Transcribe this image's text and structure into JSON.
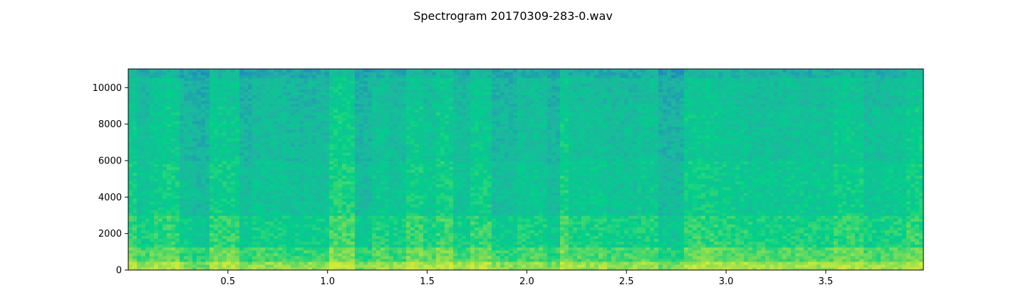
{
  "chart_data": {
    "type": "heatmap",
    "title": "Spectrogram 20170309-283-0.wav",
    "xlabel": "",
    "ylabel": "",
    "xlim": [
      0.0,
      3.99
    ],
    "ylim": [
      0,
      11025
    ],
    "x_ticks": [
      0.5,
      1.0,
      1.5,
      2.0,
      2.5,
      3.0,
      3.5
    ],
    "x_tick_labels": [
      "0.5",
      "1.0",
      "1.5",
      "2.0",
      "2.5",
      "3.0",
      "3.5"
    ],
    "y_ticks": [
      0,
      2000,
      4000,
      6000,
      8000,
      10000
    ],
    "y_tick_labels": [
      "0",
      "2000",
      "4000",
      "6000",
      "8000",
      "10000"
    ],
    "colormap": [
      "#2a4fa0",
      "#1d8fbd",
      "#1fb5a0",
      "#00d08a",
      "#6edb5a",
      "#c8e83a",
      "#f0f020"
    ],
    "grid": false,
    "time_segments": [
      {
        "t0": 0.0,
        "t1": 0.04,
        "level": 0.72
      },
      {
        "t0": 0.04,
        "t1": 0.1,
        "level": 0.55
      },
      {
        "t0": 0.1,
        "t1": 0.2,
        "level": 0.68
      },
      {
        "t0": 0.2,
        "t1": 0.25,
        "level": 0.76
      },
      {
        "t0": 0.25,
        "t1": 0.32,
        "level": 0.5
      },
      {
        "t0": 0.32,
        "t1": 0.4,
        "level": 0.42
      },
      {
        "t0": 0.4,
        "t1": 0.55,
        "level": 0.72
      },
      {
        "t0": 0.55,
        "t1": 0.63,
        "level": 0.45
      },
      {
        "t0": 0.63,
        "t1": 0.8,
        "level": 0.55
      },
      {
        "t0": 0.8,
        "t1": 0.9,
        "level": 0.5
      },
      {
        "t0": 0.9,
        "t1": 1.0,
        "level": 0.52
      },
      {
        "t0": 1.0,
        "t1": 1.13,
        "level": 0.8
      },
      {
        "t0": 1.13,
        "t1": 1.22,
        "level": 0.45
      },
      {
        "t0": 1.22,
        "t1": 1.3,
        "level": 0.62
      },
      {
        "t0": 1.3,
        "t1": 1.4,
        "level": 0.55
      },
      {
        "t0": 1.4,
        "t1": 1.47,
        "level": 0.74
      },
      {
        "t0": 1.47,
        "t1": 1.55,
        "level": 0.62
      },
      {
        "t0": 1.55,
        "t1": 1.63,
        "level": 0.76
      },
      {
        "t0": 1.63,
        "t1": 1.72,
        "level": 0.55
      },
      {
        "t0": 1.72,
        "t1": 1.83,
        "level": 0.72
      },
      {
        "t0": 1.83,
        "t1": 1.95,
        "level": 0.48
      },
      {
        "t0": 1.95,
        "t1": 2.1,
        "level": 0.6
      },
      {
        "t0": 2.1,
        "t1": 2.17,
        "level": 0.45
      },
      {
        "t0": 2.17,
        "t1": 2.22,
        "level": 0.78
      },
      {
        "t0": 2.22,
        "t1": 2.4,
        "level": 0.6
      },
      {
        "t0": 2.4,
        "t1": 2.55,
        "level": 0.55
      },
      {
        "t0": 2.55,
        "t1": 2.65,
        "level": 0.62
      },
      {
        "t0": 2.65,
        "t1": 2.78,
        "level": 0.42
      },
      {
        "t0": 2.78,
        "t1": 2.95,
        "level": 0.72
      },
      {
        "t0": 2.95,
        "t1": 3.1,
        "level": 0.66
      },
      {
        "t0": 3.1,
        "t1": 3.3,
        "level": 0.6
      },
      {
        "t0": 3.3,
        "t1": 3.55,
        "level": 0.62
      },
      {
        "t0": 3.55,
        "t1": 3.68,
        "level": 0.72
      },
      {
        "t0": 3.68,
        "t1": 3.8,
        "level": 0.58
      },
      {
        "t0": 3.8,
        "t1": 3.9,
        "level": 0.62
      },
      {
        "t0": 3.9,
        "t1": 3.99,
        "level": 0.74
      }
    ],
    "frequency_profile": [
      {
        "f0": 0,
        "f1": 400,
        "level": 1.0
      },
      {
        "f0": 400,
        "f1": 1200,
        "level": 0.78
      },
      {
        "f0": 1200,
        "f1": 3000,
        "level": 0.62
      },
      {
        "f0": 3000,
        "f1": 6000,
        "level": 0.5
      },
      {
        "f0": 6000,
        "f1": 9000,
        "level": 0.44
      },
      {
        "f0": 9000,
        "f1": 10600,
        "level": 0.4
      },
      {
        "f0": 10600,
        "f1": 11025,
        "level": 0.28
      }
    ]
  }
}
